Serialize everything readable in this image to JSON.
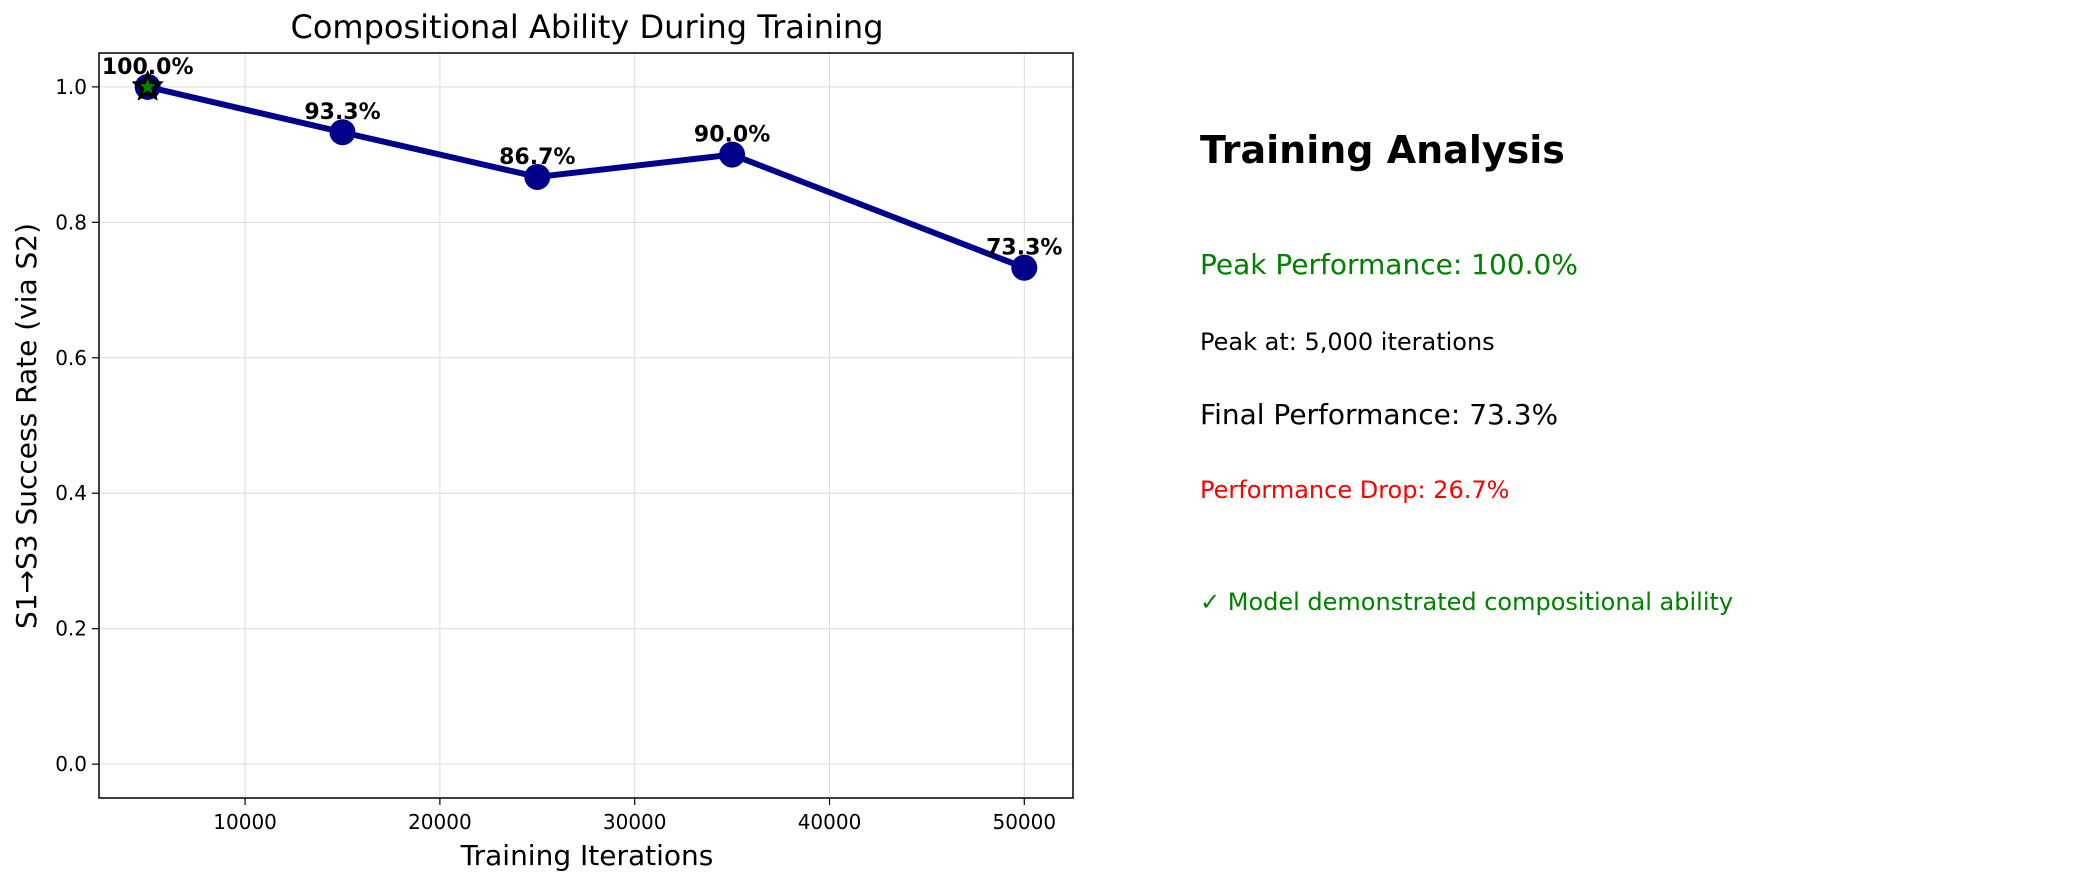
{
  "chart_data": {
    "type": "line",
    "title": "Compositional Ability During Training",
    "xlabel": "Training Iterations",
    "ylabel": "S1→S3 Success Rate (via S2)",
    "xlim": [
      2500,
      52500
    ],
    "ylim": [
      -0.05,
      1.05
    ],
    "xticks": [
      10000,
      20000,
      30000,
      40000,
      50000
    ],
    "yticks": [
      0.0,
      0.2,
      0.4,
      0.6,
      0.8,
      1.0
    ],
    "grid": true,
    "x": [
      5000,
      15000,
      25000,
      35000,
      50000
    ],
    "y": [
      1.0,
      0.933,
      0.867,
      0.9,
      0.733
    ],
    "point_labels": [
      "100.0%",
      "93.3%",
      "86.7%",
      "90.0%",
      "73.3%"
    ],
    "peak_marker": {
      "x": 5000,
      "y": 1.0,
      "shape": "star"
    },
    "colors": {
      "line": "#00008b",
      "peak_star": "#008000"
    }
  },
  "analysis": {
    "title": "Training Analysis",
    "peak_performance": "Peak Performance: 100.0%",
    "peak_at": "Peak at: 5,000 iterations",
    "final_performance": "Final Performance: 73.3%",
    "performance_drop": "Performance Drop: 26.7%",
    "conclusion": "✓ Model demonstrated compositional ability",
    "colors": {
      "peak": "#008000",
      "drop": "#ff0000",
      "conclusion": "#008000"
    }
  }
}
